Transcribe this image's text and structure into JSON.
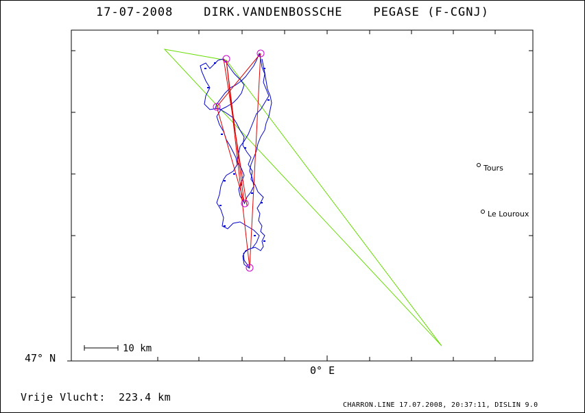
{
  "header": {
    "title": "17-07-2008    DIRK.VANDENBOSSCHE    PEGASE (F-CGNJ)"
  },
  "axes": {
    "lat_label": "47° N",
    "lon_label": "0° E"
  },
  "places": [
    {
      "name": "Tours"
    },
    {
      "name": "Le Louroux"
    }
  ],
  "scale_bar": {
    "label": "10 km"
  },
  "summary": {
    "distance_text": "Vrije Vlucht:  223.4 km"
  },
  "footer": {
    "text": "CHARRON.LINE 17.07.2008, 20:37:11, DISLIN 9.0"
  },
  "colors": {
    "track": "#0000cc",
    "course_legs": "#dd0000",
    "triangle": "#66dd00",
    "turnpoints": "#cc00cc"
  }
}
